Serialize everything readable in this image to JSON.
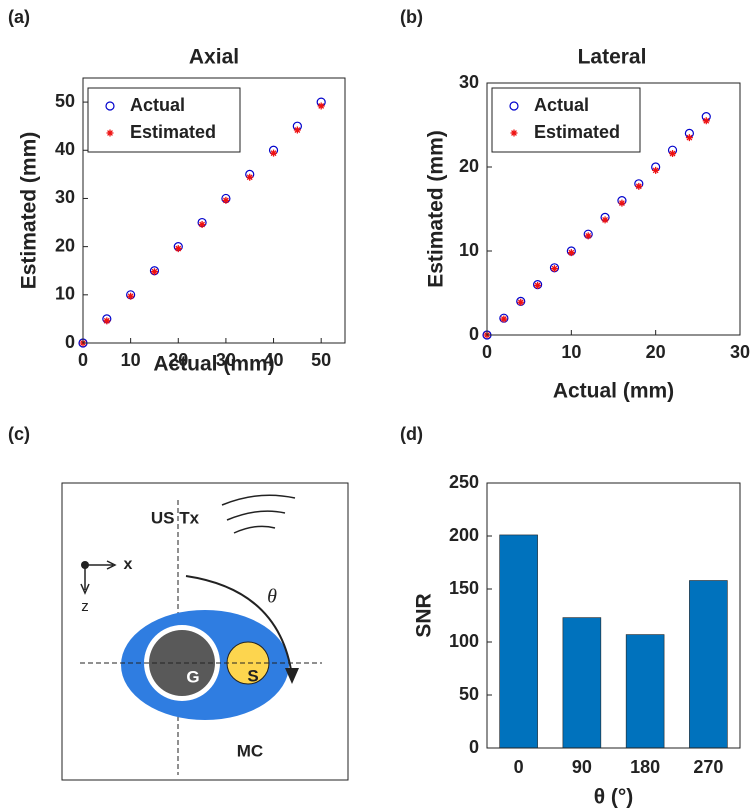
{
  "chart_data": [
    {
      "type": "scatter",
      "label": "(a)",
      "title": "Axial",
      "xlabel": "Actual (mm)",
      "ylabel": "Estimated (mm)",
      "xlim": [
        0,
        55
      ],
      "ylim": [
        0,
        55
      ],
      "xticks": [
        0,
        10,
        20,
        30,
        40,
        50
      ],
      "yticks": [
        0,
        10,
        20,
        30,
        40,
        50
      ],
      "x": [
        0,
        5,
        10,
        15,
        20,
        25,
        30,
        35,
        40,
        45,
        50
      ],
      "series": [
        {
          "name": "Actual",
          "color": "#0000cc",
          "marker": "o",
          "values": [
            0,
            5,
            10,
            15,
            20,
            25,
            30,
            35,
            40,
            45,
            50
          ]
        },
        {
          "name": "Estimated",
          "color": "#ee1111",
          "marker": "*",
          "values": [
            0,
            4.6,
            9.7,
            14.8,
            19.6,
            24.6,
            29.6,
            34.4,
            39.4,
            44.2,
            49.2
          ]
        }
      ]
    },
    {
      "type": "scatter",
      "label": "(b)",
      "title": "Lateral",
      "xlabel": "Actual (mm)",
      "ylabel": "Estimated (mm)",
      "xlim": [
        0,
        30
      ],
      "ylim": [
        0,
        30
      ],
      "xticks": [
        0,
        10,
        20,
        30
      ],
      "yticks": [
        0,
        10,
        20,
        30
      ],
      "x": [
        0,
        2,
        4,
        6,
        8,
        10,
        12,
        14,
        16,
        18,
        20,
        22,
        24,
        26
      ],
      "series": [
        {
          "name": "Actual",
          "color": "#0000cc",
          "marker": "o",
          "values": [
            0,
            2,
            4,
            6,
            8,
            10,
            12,
            14,
            16,
            18,
            20,
            22,
            24,
            26
          ]
        },
        {
          "name": "Estimated",
          "color": "#ee1111",
          "marker": "*",
          "values": [
            0,
            1.9,
            3.9,
            5.9,
            7.9,
            9.8,
            11.8,
            13.7,
            15.7,
            17.7,
            19.6,
            21.6,
            23.5,
            25.5
          ]
        }
      ]
    },
    {
      "type": "bar",
      "label": "(d)",
      "xlabel": "θ (°)",
      "ylabel": "SNR",
      "categories": [
        "0",
        "90",
        "180",
        "270"
      ],
      "values": [
        201,
        123,
        107,
        158
      ],
      "color": "#0072bd",
      "ylim": [
        0,
        250
      ],
      "yticks": [
        0,
        50,
        100,
        150,
        200,
        250
      ]
    }
  ],
  "diagram": {
    "label": "(c)",
    "transmitter": "US Tx",
    "x_axis": "x",
    "z_axis": "z",
    "angle": "θ",
    "g": "G",
    "s": "S",
    "mc": "MC"
  }
}
